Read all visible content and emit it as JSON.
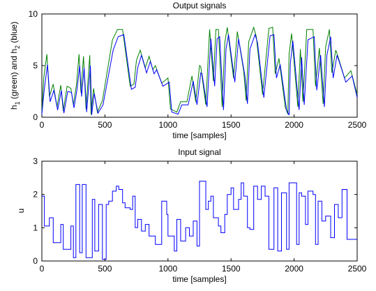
{
  "chart_data": [
    {
      "type": "line",
      "title": "Output signals",
      "xlabel": "time [samples]",
      "ylabel": {
        "pre": "h",
        "sub1": "1",
        "mid": " (green) and h",
        "sub2": "2",
        "post": " (blue)"
      },
      "xlim": [
        0,
        2500
      ],
      "ylim": [
        0,
        10
      ],
      "xticks": [
        0,
        500,
        1000,
        1500,
        2000,
        2500
      ],
      "yticks": [
        0,
        5,
        10
      ],
      "grid": false,
      "series": [
        {
          "color": "#008000",
          "x": [
            0,
            15,
            40,
            60,
            90,
            120,
            150,
            170,
            200,
            230,
            250,
            275,
            295,
            310,
            330,
            350,
            380,
            390,
            410,
            440,
            480,
            560,
            600,
            640,
            700,
            730,
            750,
            780,
            820,
            850,
            880,
            900,
            950,
            1000,
            1020,
            1070,
            1100,
            1150,
            1190,
            1220,
            1250,
            1260,
            1300,
            1330,
            1360,
            1380,
            1400,
            1430,
            1450,
            1470,
            1520,
            1550,
            1600,
            1620,
            1640,
            1680,
            1700,
            1750,
            1800,
            1830,
            1850,
            1880,
            1930,
            1950,
            1960,
            1980,
            2030,
            2050,
            2070,
            2100,
            2150,
            2170,
            2200,
            2230,
            2250,
            2280,
            2300,
            2330,
            2350,
            2400,
            2450,
            2500
          ],
          "values": [
            0.5,
            3.8,
            6.1,
            2.0,
            3.2,
            1.0,
            3.1,
            0.6,
            3.0,
            2.8,
            1.2,
            3.2,
            6.1,
            2.4,
            5.9,
            0.8,
            6.0,
            0.3,
            2.8,
            0.5,
            1.6,
            7.5,
            8.5,
            8.5,
            3.0,
            3.2,
            5.5,
            6.5,
            4.8,
            5.9,
            4.6,
            5.0,
            3.3,
            3.8,
            0.8,
            0.5,
            1.5,
            1.5,
            4.0,
            1.5,
            5.0,
            4.9,
            1.2,
            8.5,
            3.5,
            8.5,
            8.5,
            1.0,
            7.2,
            8.7,
            3.8,
            8.3,
            4.5,
            1.6,
            7.3,
            8.7,
            7.8,
            2.2,
            8.6,
            8.7,
            4.2,
            5.7,
            1.0,
            0.3,
            6.1,
            8.1,
            1.0,
            6.6,
            1.5,
            8.5,
            8.5,
            3.0,
            6.7,
            1.3,
            6.8,
            8.5,
            4.3,
            6.5,
            5.8,
            3.8,
            4.5,
            2.2
          ]
        },
        {
          "color": "#0000ff",
          "x": [
            0,
            20,
            45,
            65,
            95,
            125,
            155,
            175,
            205,
            235,
            255,
            280,
            300,
            315,
            335,
            355,
            385,
            395,
            415,
            445,
            485,
            565,
            605,
            650,
            710,
            740,
            760,
            790,
            830,
            860,
            890,
            910,
            960,
            1010,
            1030,
            1080,
            1110,
            1160,
            1200,
            1230,
            1260,
            1270,
            1310,
            1340,
            1370,
            1390,
            1410,
            1440,
            1460,
            1480,
            1530,
            1560,
            1610,
            1630,
            1650,
            1690,
            1710,
            1760,
            1810,
            1840,
            1860,
            1890,
            1940,
            1960,
            1970,
            1990,
            2040,
            2060,
            2080,
            2110,
            2160,
            2180,
            2210,
            2240,
            2260,
            2290,
            2310,
            2340,
            2360,
            2410,
            2460,
            2500
          ],
          "values": [
            0.3,
            2.8,
            5.1,
            1.5,
            2.6,
            0.7,
            2.6,
            0.4,
            2.5,
            2.4,
            0.9,
            2.8,
            5.0,
            2.0,
            4.8,
            0.5,
            5.0,
            0.2,
            2.3,
            0.4,
            1.2,
            6.5,
            7.8,
            8.0,
            2.7,
            2.9,
            4.8,
            6.0,
            4.3,
            5.4,
            4.2,
            4.6,
            3.0,
            3.4,
            0.5,
            0.3,
            1.2,
            1.2,
            3.5,
            1.2,
            4.3,
            4.2,
            1.0,
            7.6,
            3.0,
            7.6,
            7.8,
            0.7,
            6.6,
            8.0,
            3.4,
            7.6,
            4.0,
            1.3,
            6.6,
            8.0,
            7.2,
            1.9,
            7.9,
            8.0,
            3.8,
            5.1,
            0.7,
            0.2,
            5.2,
            7.4,
            0.7,
            5.8,
            1.2,
            7.5,
            7.8,
            2.6,
            6.0,
            1.0,
            6.0,
            7.8,
            3.8,
            6.0,
            5.3,
            3.4,
            4.0,
            1.9
          ]
        }
      ]
    },
    {
      "type": "line",
      "title": "Input signal",
      "xlabel": "time [samples]",
      "ylabel": "u",
      "xlim": [
        0,
        2500
      ],
      "ylim": [
        0,
        3
      ],
      "xticks": [
        0,
        500,
        1000,
        1500,
        2000,
        2500
      ],
      "yticks": [
        0,
        1,
        2,
        3
      ],
      "grid": false,
      "series": [
        {
          "color": "#0000ff",
          "step": true,
          "x": [
            0,
            20,
            60,
            90,
            150,
            170,
            230,
            250,
            270,
            300,
            320,
            350,
            400,
            420,
            450,
            480,
            510,
            530,
            560,
            590,
            610,
            640,
            660,
            700,
            720,
            740,
            760,
            790,
            820,
            850,
            900,
            950,
            990,
            1000,
            1050,
            1070,
            1100,
            1140,
            1170,
            1200,
            1230,
            1250,
            1270,
            1300,
            1320,
            1340,
            1360,
            1400,
            1420,
            1450,
            1470,
            1500,
            1520,
            1560,
            1580,
            1600,
            1630,
            1650,
            1680,
            1710,
            1740,
            1770,
            1800,
            1840,
            1870,
            1900,
            1940,
            1960,
            1990,
            2020,
            2040,
            2060,
            2090,
            2110,
            2150,
            2170,
            2190,
            2220,
            2250,
            2290,
            2320,
            2350,
            2380,
            2420,
            2460,
            2500
          ],
          "values": [
            1.95,
            1.05,
            1.3,
            0.55,
            1.1,
            0.35,
            1.05,
            0.1,
            2.3,
            0.25,
            2.3,
            0.1,
            1.85,
            0.3,
            1.7,
            0.05,
            1.7,
            1.8,
            2.1,
            2.25,
            2.15,
            1.75,
            1.6,
            1.55,
            1.95,
            1.0,
            1.25,
            0.9,
            1.1,
            0.75,
            0.5,
            1.8,
            1.4,
            0.75,
            0.3,
            1.25,
            0.6,
            1.0,
            0.75,
            1.2,
            0.45,
            2.4,
            2.4,
            1.55,
            1.8,
            1.95,
            1.3,
            1.05,
            0.85,
            1.4,
            2.0,
            2.2,
            1.55,
            1.85,
            2.35,
            1.95,
            1.0,
            0.95,
            2.25,
            1.85,
            2.25,
            1.95,
            0.35,
            2.2,
            0.3,
            2.05,
            0.35,
            2.35,
            2.35,
            0.5,
            2.05,
            1.95,
            1.1,
            2.1,
            2.0,
            0.5,
            1.8,
            1.2,
            1.35,
            0.7,
            1.7,
            1.3,
            2.15,
            0.65,
            0.65,
            0.65
          ]
        }
      ]
    }
  ]
}
